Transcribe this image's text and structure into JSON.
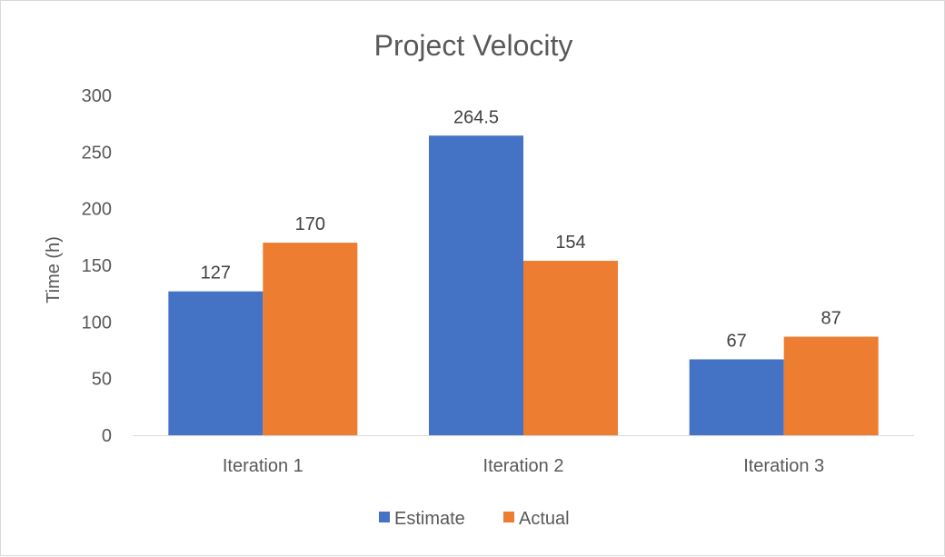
{
  "chart_data": {
    "type": "bar",
    "title": "Project Velocity",
    "xlabel": "",
    "ylabel": "Time (h)",
    "categories": [
      "Iteration 1",
      "Iteration 2",
      "Iteration 3"
    ],
    "series": [
      {
        "name": "Estimate",
        "color": "#4472C4",
        "values": [
          127,
          264.5,
          67
        ],
        "labels": [
          "127",
          "264.5",
          "67"
        ]
      },
      {
        "name": "Actual",
        "color": "#ED7D31",
        "values": [
          170,
          154,
          87
        ],
        "labels": [
          "170",
          "154",
          "87"
        ]
      }
    ],
    "ylim": [
      0,
      300
    ],
    "yticks": [
      "0",
      "50",
      "100",
      "150",
      "200",
      "250",
      "300"
    ],
    "grid": false,
    "legend_position": "bottom",
    "colors": {
      "axis_line": "#d9d9d9",
      "text": "#595959",
      "data_label": "#404040"
    }
  }
}
